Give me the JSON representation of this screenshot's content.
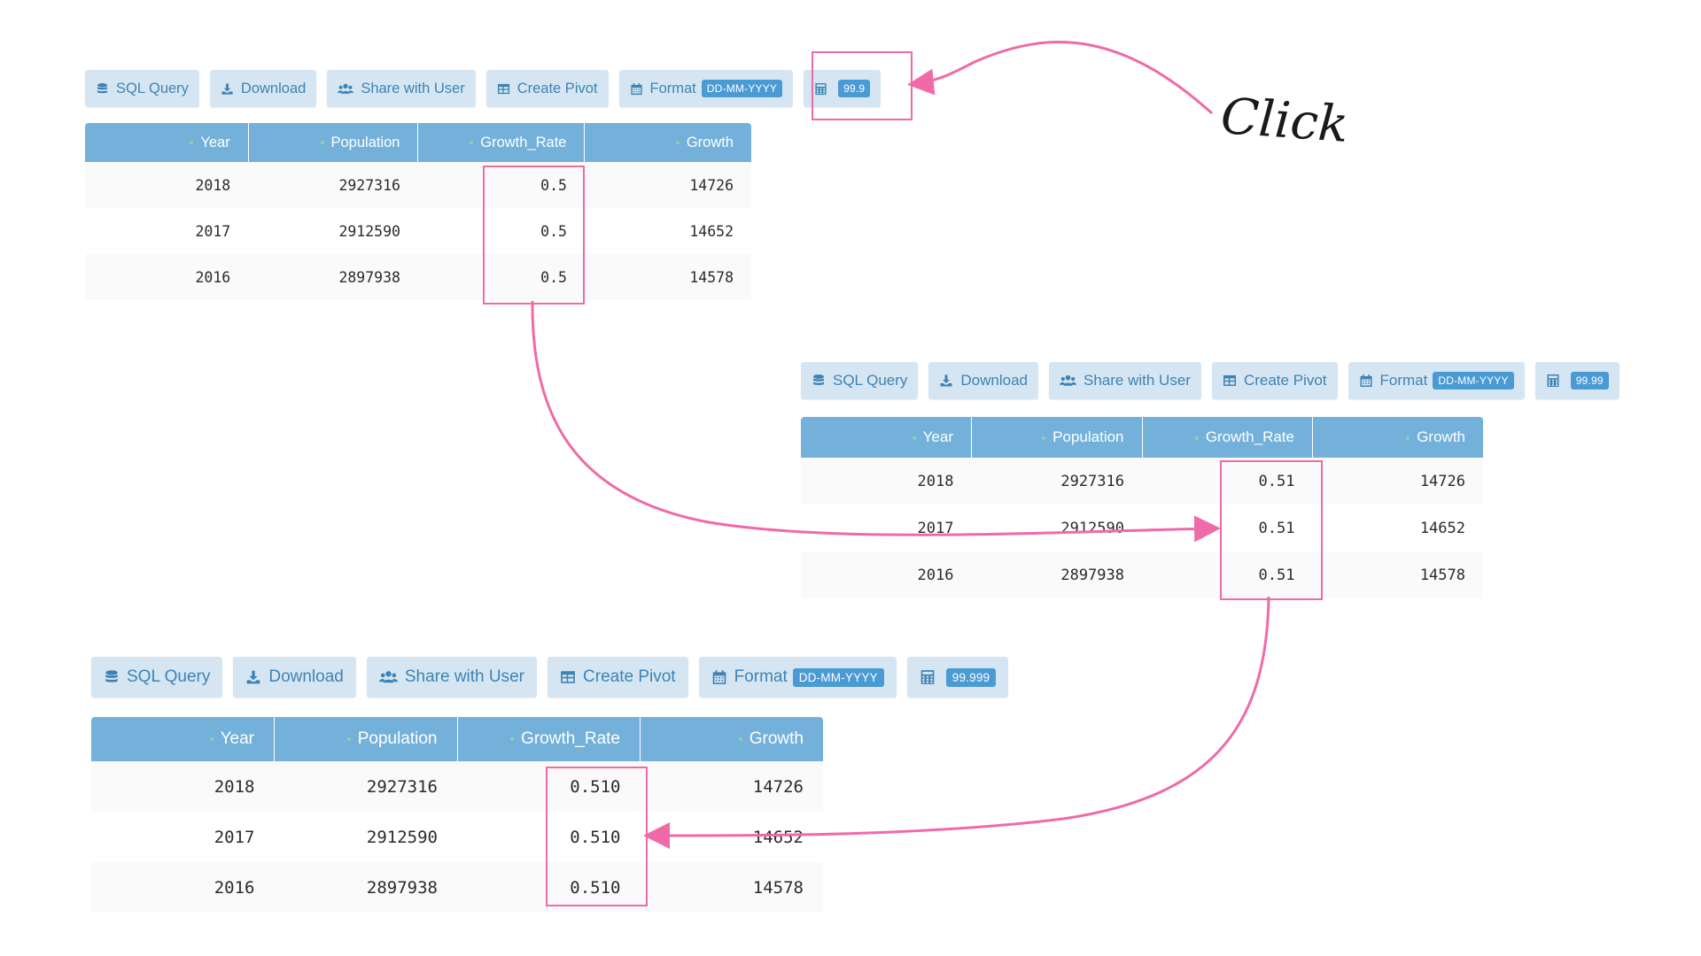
{
  "colors": {
    "button_bg": "#d5e6f2",
    "button_text": "#3e83b6",
    "badge_bg": "#4a9ad4",
    "table_header_bg": "#73b1da",
    "annotation": "#f06aa8"
  },
  "icons": {
    "sql": "database-icon",
    "download": "download-icon",
    "share": "users-icon",
    "pivot": "table-icon",
    "format": "calendar-icon",
    "precision": "calculator-icon"
  },
  "annotation": {
    "click_label": "Click"
  },
  "panels": [
    {
      "toolbar": {
        "sql": "SQL Query",
        "download": "Download",
        "share": "Share with User",
        "pivot": "Create Pivot",
        "format": "Format",
        "date_format": "DD-MM-YYYY",
        "precision": "99.9"
      },
      "table": {
        "columns": [
          "Year",
          "Population",
          "Growth_Rate",
          "Growth"
        ],
        "rows": [
          [
            "2018",
            "2927316",
            "0.5",
            "14726"
          ],
          [
            "2017",
            "2912590",
            "0.5",
            "14652"
          ],
          [
            "2016",
            "2897938",
            "0.5",
            "14578"
          ]
        ]
      }
    },
    {
      "toolbar": {
        "sql": "SQL Query",
        "download": "Download",
        "share": "Share with User",
        "pivot": "Create Pivot",
        "format": "Format",
        "date_format": "DD-MM-YYYY",
        "precision": "99.99"
      },
      "table": {
        "columns": [
          "Year",
          "Population",
          "Growth_Rate",
          "Growth"
        ],
        "rows": [
          [
            "2018",
            "2927316",
            "0.51",
            "14726"
          ],
          [
            "2017",
            "2912590",
            "0.51",
            "14652"
          ],
          [
            "2016",
            "2897938",
            "0.51",
            "14578"
          ]
        ]
      }
    },
    {
      "toolbar": {
        "sql": "SQL Query",
        "download": "Download",
        "share": "Share with User",
        "pivot": "Create Pivot",
        "format": "Format",
        "date_format": "DD-MM-YYYY",
        "precision": "99.999"
      },
      "table": {
        "columns": [
          "Year",
          "Population",
          "Growth_Rate",
          "Growth"
        ],
        "rows": [
          [
            "2018",
            "2927316",
            "0.510",
            "14726"
          ],
          [
            "2017",
            "2912590",
            "0.510",
            "14652"
          ],
          [
            "2016",
            "2897938",
            "0.510",
            "14578"
          ]
        ]
      }
    }
  ]
}
